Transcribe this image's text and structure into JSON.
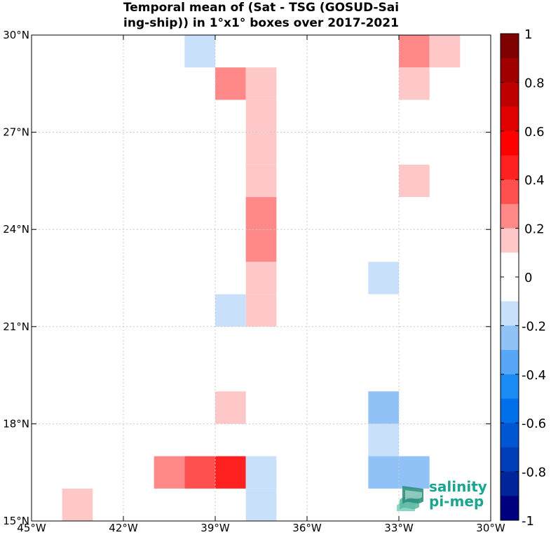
{
  "chart_data": {
    "type": "heatmap",
    "title_lines": [
      "Temporal mean of (Sat - TSG (GOSUD-Sai",
      "ing-ship)) in 1°x1° boxes over 2017-2021"
    ],
    "xlim": [
      -45,
      -30
    ],
    "ylim": [
      15,
      30
    ],
    "x_ticks": [
      {
        "v": -45,
        "label": "45°W"
      },
      {
        "v": -42,
        "label": "42°W"
      },
      {
        "v": -39,
        "label": "39°W"
      },
      {
        "v": -36,
        "label": "36°W"
      },
      {
        "v": -33,
        "label": "33°W"
      },
      {
        "v": -30,
        "label": "30°W"
      }
    ],
    "y_ticks": [
      {
        "v": 15,
        "label": "15°N"
      },
      {
        "v": 18,
        "label": "18°N"
      },
      {
        "v": 21,
        "label": "21°N"
      },
      {
        "v": 24,
        "label": "24°N"
      },
      {
        "v": 27,
        "label": "27°N"
      },
      {
        "v": 30,
        "label": "30°N"
      }
    ],
    "grid": true,
    "cells": [
      {
        "lon": -40,
        "lat": 29,
        "value": -0.15
      },
      {
        "lon": -33,
        "lat": 29,
        "value": 0.25
      },
      {
        "lon": -32,
        "lat": 29,
        "value": 0.15
      },
      {
        "lon": -39,
        "lat": 28,
        "value": 0.25
      },
      {
        "lon": -38,
        "lat": 28,
        "value": 0.15
      },
      {
        "lon": -33,
        "lat": 28,
        "value": 0.15
      },
      {
        "lon": -38,
        "lat": 27,
        "value": 0.15
      },
      {
        "lon": -38,
        "lat": 26,
        "value": 0.15
      },
      {
        "lon": -38,
        "lat": 25,
        "value": 0.15
      },
      {
        "lon": -33,
        "lat": 25,
        "value": 0.15
      },
      {
        "lon": -38,
        "lat": 24,
        "value": 0.25
      },
      {
        "lon": -38,
        "lat": 23,
        "value": 0.25
      },
      {
        "lon": -38,
        "lat": 22,
        "value": 0.15
      },
      {
        "lon": -34,
        "lat": 22,
        "value": -0.15
      },
      {
        "lon": -39,
        "lat": 21,
        "value": -0.15
      },
      {
        "lon": -38,
        "lat": 21,
        "value": 0.15
      },
      {
        "lon": -39,
        "lat": 18,
        "value": 0.15
      },
      {
        "lon": -34,
        "lat": 18,
        "value": -0.25
      },
      {
        "lon": -34,
        "lat": 17,
        "value": -0.15
      },
      {
        "lon": -41,
        "lat": 16,
        "value": 0.25
      },
      {
        "lon": -40,
        "lat": 16,
        "value": 0.35
      },
      {
        "lon": -39,
        "lat": 16,
        "value": 0.45
      },
      {
        "lon": -38,
        "lat": 16,
        "value": -0.15
      },
      {
        "lon": -34,
        "lat": 16,
        "value": -0.25
      },
      {
        "lon": -33,
        "lat": 16,
        "value": -0.25
      },
      {
        "lon": -38,
        "lat": 15,
        "value": -0.15
      },
      {
        "lon": -44,
        "lat": 15,
        "value": 0.15
      }
    ],
    "colorbar": {
      "range": [
        -1,
        1
      ],
      "ticks": [
        {
          "v": 1,
          "label": "1"
        },
        {
          "v": 0.8,
          "label": "0.8"
        },
        {
          "v": 0.6,
          "label": "0.6"
        },
        {
          "v": 0.4,
          "label": "0.4"
        },
        {
          "v": 0.2,
          "label": "0.2"
        },
        {
          "v": 0,
          "label": "0"
        },
        {
          "v": -0.2,
          "label": "-0.2"
        },
        {
          "v": -0.4,
          "label": "-0.4"
        },
        {
          "v": -0.6,
          "label": "-0.6"
        },
        {
          "v": -0.8,
          "label": "-0.8"
        },
        {
          "v": -1,
          "label": "-1"
        }
      ],
      "colors_top_to_bottom": [
        "#7f0000",
        "#a00000",
        "#bf0000",
        "#df0000",
        "#ff0000",
        "#ff2020",
        "#ff5050",
        "#ff8888",
        "#ffc8c8",
        "#ffffff",
        "#ffffff",
        "#c8e0fa",
        "#90c2f8",
        "#58a6f6",
        "#1c8cf4",
        "#0070ea",
        "#0056d2",
        "#003eb8",
        "#00249a",
        "#00007f"
      ]
    }
  },
  "logo": {
    "line1": "salinity",
    "line2": "pi-mep"
  }
}
